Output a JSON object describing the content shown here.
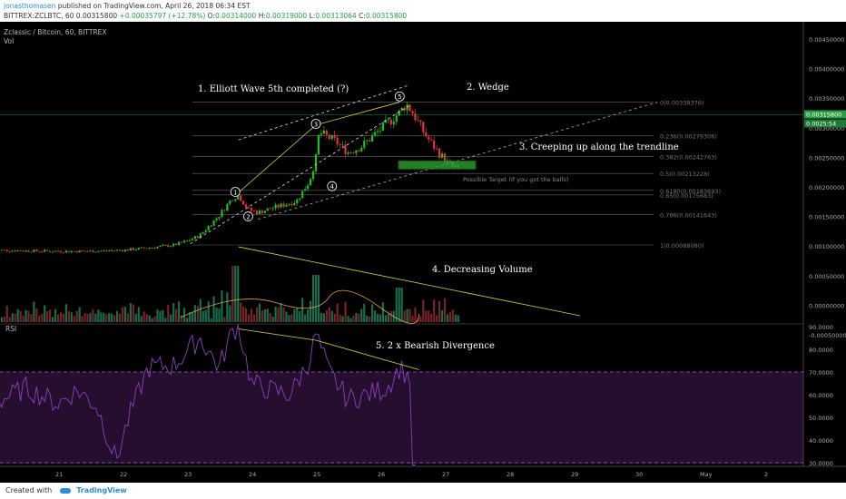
{
  "header": {
    "author": "jonasthomasen",
    "published": "published on TradingView.com, April 26, 2018 06:34 EST",
    "symbol": "BITTREX:ZCLBTC, 60",
    "price": "0.00315800",
    "change": "+0.00035797 (+12.78%)",
    "o_label": "O:",
    "o": "0.00314000",
    "h_label": "H:",
    "h": "0.00319000",
    "l_label": "L:",
    "l": "0.00313064",
    "c_label": "C:",
    "c": "0.00315800"
  },
  "chart_meta": {
    "title": "Zclassic / Bitcoin, 60, BITTREX",
    "vol_label": "Vol",
    "rsi_label": "RSI",
    "current_price_tag": "0.00315800",
    "countdown_tag": "0.0025:54"
  },
  "price_axis": [
    "0.00450000",
    "0.00400000",
    "0.00350000",
    "0.00300000",
    "0.00250000",
    "0.00200000",
    "0.00150000",
    "0.00100000",
    "0.00050000",
    "0.00000000",
    "-0.00050000"
  ],
  "rsi_axis": [
    "90.0000",
    "80.0000",
    "70.0000",
    "60.0000",
    "50.0000",
    "40.0000",
    "30.0000"
  ],
  "time_axis": [
    "21",
    "22",
    "23",
    "24",
    "25",
    "26",
    "27",
    "28",
    "29",
    "30",
    "May",
    "2"
  ],
  "fib_levels": [
    {
      "label": "0(0.00338376)",
      "v": 0.00338376
    },
    {
      "label": "0.236(0.00279306)",
      "v": 0.00279306
    },
    {
      "label": "0.382(0.00242763)",
      "v": 0.00242763
    },
    {
      "label": "0.5(0.00213228)",
      "v": 0.00213228
    },
    {
      "label": "0.6180(0.00183693)",
      "v": 0.00183693
    },
    {
      "label": "0.65(0.00175683)",
      "v": 0.00175683
    },
    {
      "label": "0.786(0.00141643)",
      "v": 0.00141643
    },
    {
      "label": "1(0.00088080)",
      "v": 0.0008808
    }
  ],
  "annotations": {
    "a1": "1. Elliott Wave 5th completed (?)",
    "a2": "2. Wedge",
    "a3": "3. Creeping up along the trendline",
    "a4": "4. Decreasing Volume",
    "a5": "5. 2 x Bearish Divergence",
    "target": "Possible Target (If you got the balls)",
    "waves": [
      "1",
      "2",
      "3",
      "4",
      "5"
    ]
  },
  "footer": {
    "created": "Created with",
    "brand": "TradingView"
  },
  "colors": {
    "up": "#26a69a",
    "green_candle": "#1ec01e",
    "down": "#e0343a",
    "rsi": "#8e3fbf",
    "rsi_band": "#2a0f33",
    "annotation_line": "#d7d54a",
    "target_box": "#2fa12f"
  },
  "chart_data": {
    "type": "line",
    "title": "Zclassic / Bitcoin, 60, BITTREX",
    "xlabel": "",
    "ylabel": "",
    "x_ticks": [
      "21",
      "22",
      "23",
      "24",
      "25",
      "26",
      "27",
      "28",
      "29",
      "30",
      "May",
      "2"
    ],
    "ylim": [
      -0.0005,
      0.0047
    ],
    "series": [
      {
        "name": "ZCLBTC close",
        "x": [
          20.0,
          20.5,
          21.0,
          21.5,
          22.0,
          22.4,
          22.8,
          23.0,
          23.2,
          23.5,
          23.7,
          23.8,
          23.95,
          24.1,
          24.4,
          24.7,
          24.9,
          25.0,
          25.05,
          25.3,
          25.5,
          25.7,
          25.9,
          26.1,
          26.3,
          26.4,
          26.5,
          26.7,
          26.9,
          27.1,
          27.25
        ],
        "values": [
          0.00079,
          0.00078,
          0.00077,
          0.00077,
          0.00079,
          0.00083,
          0.00088,
          0.00095,
          0.00105,
          0.0014,
          0.0017,
          0.00175,
          0.0015,
          0.00145,
          0.00155,
          0.00165,
          0.002,
          0.0024,
          0.00285,
          0.0027,
          0.0025,
          0.0026,
          0.0028,
          0.003,
          0.0032,
          0.00335,
          0.0032,
          0.0028,
          0.0025,
          0.00225,
          0.0022
        ]
      }
    ],
    "rsi": {
      "ylim": [
        28,
        92
      ],
      "x": [
        20.0,
        20.5,
        21.0,
        21.3,
        21.6,
        21.9,
        22.1,
        22.4,
        22.8,
        23.2,
        23.5,
        23.7,
        23.8,
        24.0,
        24.3,
        24.6,
        24.9,
        25.0,
        25.2,
        25.5,
        25.8,
        26.1,
        26.3,
        26.5
      ],
      "values": [
        56,
        63,
        56,
        62,
        55,
        31,
        50,
        72,
        73,
        85,
        72,
        88,
        90,
        65,
        62,
        60,
        75,
        87,
        70,
        58,
        60,
        63,
        72,
        66
      ]
    },
    "volume_note": "volume shown in-pane below price; decreasing volume trend"
  }
}
